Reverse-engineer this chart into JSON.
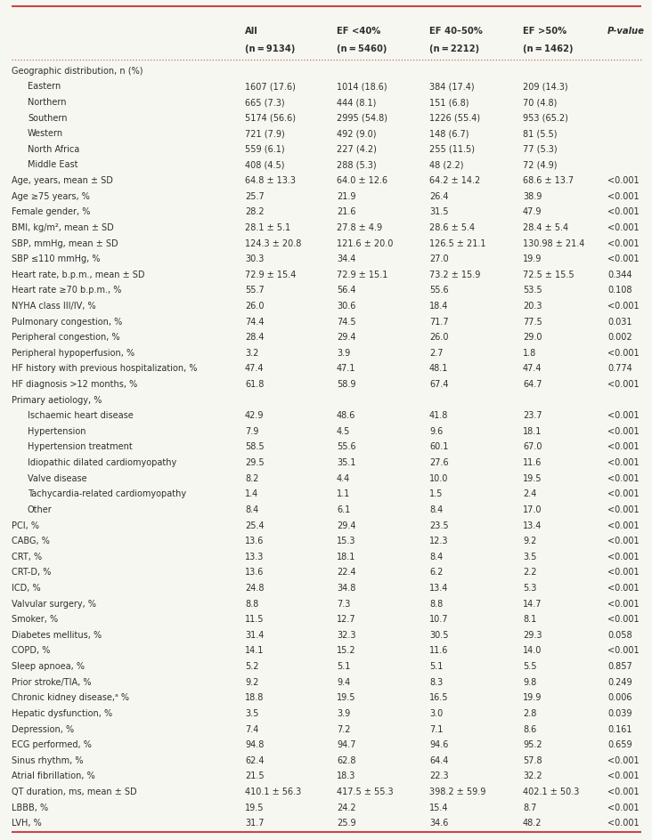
{
  "col_headers_line1": [
    "",
    "All",
    "EF <40%",
    "EF 40–50%",
    "EF >50%",
    "P-value"
  ],
  "col_headers_line2": [
    "",
    "(n = 9134)",
    "(n = 5460)",
    "(n = 2212)",
    "(n = 1462)",
    ""
  ],
  "rows": [
    [
      "Geographic distribution, n (%)",
      "",
      "",
      "",
      "",
      ""
    ],
    [
      "    Eastern",
      "1607 (17.6)",
      "1014 (18.6)",
      "384 (17.4)",
      "209 (14.3)",
      ""
    ],
    [
      "    Northern",
      "665 (7.3)",
      "444 (8.1)",
      "151 (6.8)",
      "70 (4.8)",
      ""
    ],
    [
      "    Southern",
      "5174 (56.6)",
      "2995 (54.8)",
      "1226 (55.4)",
      "953 (65.2)",
      ""
    ],
    [
      "    Western",
      "721 (7.9)",
      "492 (9.0)",
      "148 (6.7)",
      "81 (5.5)",
      ""
    ],
    [
      "    North Africa",
      "559 (6.1)",
      "227 (4.2)",
      "255 (11.5)",
      "77 (5.3)",
      ""
    ],
    [
      "    Middle East",
      "408 (4.5)",
      "288 (5.3)",
      "48 (2.2)",
      "72 (4.9)",
      ""
    ],
    [
      "Age, years, mean ± SD",
      "64.8 ± 13.3",
      "64.0 ± 12.6",
      "64.2 ± 14.2",
      "68.6 ± 13.7",
      "<0.001"
    ],
    [
      "Age ≥75 years, %",
      "25.7",
      "21.9",
      "26.4",
      "38.9",
      "<0.001"
    ],
    [
      "Female gender, %",
      "28.2",
      "21.6",
      "31.5",
      "47.9",
      "<0.001"
    ],
    [
      "BMI, kg/m², mean ± SD",
      "28.1 ± 5.1",
      "27.8 ± 4.9",
      "28.6 ± 5.4",
      "28.4 ± 5.4",
      "<0.001"
    ],
    [
      "SBP, mmHg, mean ± SD",
      "124.3 ± 20.8",
      "121.6 ± 20.0",
      "126.5 ± 21.1",
      "130.98 ± 21.4",
      "<0.001"
    ],
    [
      "SBP ≤110 mmHg, %",
      "30.3",
      "34.4",
      "27.0",
      "19.9",
      "<0.001"
    ],
    [
      "Heart rate, b.p.m., mean ± SD",
      "72.9 ± 15.4",
      "72.9 ± 15.1",
      "73.2 ± 15.9",
      "72.5 ± 15.5",
      "0.344"
    ],
    [
      "Heart rate ≥70 b.p.m., %",
      "55.7",
      "56.4",
      "55.6",
      "53.5",
      "0.108"
    ],
    [
      "NYHA class III/IV, %",
      "26.0",
      "30.6",
      "18.4",
      "20.3",
      "<0.001"
    ],
    [
      "Pulmonary congestion, %",
      "74.4",
      "74.5",
      "71.7",
      "77.5",
      "0.031"
    ],
    [
      "Peripheral congestion, %",
      "28.4",
      "29.4",
      "26.0",
      "29.0",
      "0.002"
    ],
    [
      "Peripheral hypoperfusion, %",
      "3.2",
      "3.9",
      "2.7",
      "1.8",
      "<0.001"
    ],
    [
      "HF history with previous hospitalization, %",
      "47.4",
      "47.1",
      "48.1",
      "47.4",
      "0.774"
    ],
    [
      "HF diagnosis >12 months, %",
      "61.8",
      "58.9",
      "67.4",
      "64.7",
      "<0.001"
    ],
    [
      "Primary aetiology, %",
      "",
      "",
      "",
      "",
      ""
    ],
    [
      "    Ischaemic heart disease",
      "42.9",
      "48.6",
      "41.8",
      "23.7",
      "<0.001"
    ],
    [
      "    Hypertension",
      "7.9",
      "4.5",
      "9.6",
      "18.1",
      "<0.001"
    ],
    [
      "    Hypertension treatment",
      "58.5",
      "55.6",
      "60.1",
      "67.0",
      "<0.001"
    ],
    [
      "    Idiopathic dilated cardiomyopathy",
      "29.5",
      "35.1",
      "27.6",
      "11.6",
      "<0.001"
    ],
    [
      "    Valve disease",
      "8.2",
      "4.4",
      "10.0",
      "19.5",
      "<0.001"
    ],
    [
      "    Tachycardia-related cardiomyopathy",
      "1.4",
      "1.1",
      "1.5",
      "2.4",
      "<0.001"
    ],
    [
      "    Other",
      "8.4",
      "6.1",
      "8.4",
      "17.0",
      "<0.001"
    ],
    [
      "PCI, %",
      "25.4",
      "29.4",
      "23.5",
      "13.4",
      "<0.001"
    ],
    [
      "CABG, %",
      "13.6",
      "15.3",
      "12.3",
      "9.2",
      "<0.001"
    ],
    [
      "CRT, %",
      "13.3",
      "18.1",
      "8.4",
      "3.5",
      "<0.001"
    ],
    [
      "CRT-D, %",
      "13.6",
      "22.4",
      "6.2",
      "2.2",
      "<0.001"
    ],
    [
      "ICD, %",
      "24.8",
      "34.8",
      "13.4",
      "5.3",
      "<0.001"
    ],
    [
      "Valvular surgery, %",
      "8.8",
      "7.3",
      "8.8",
      "14.7",
      "<0.001"
    ],
    [
      "Smoker, %",
      "11.5",
      "12.7",
      "10.7",
      "8.1",
      "<0.001"
    ],
    [
      "Diabetes mellitus, %",
      "31.4",
      "32.3",
      "30.5",
      "29.3",
      "0.058"
    ],
    [
      "COPD, %",
      "14.1",
      "15.2",
      "11.6",
      "14.0",
      "<0.001"
    ],
    [
      "Sleep apnoea, %",
      "5.2",
      "5.1",
      "5.1",
      "5.5",
      "0.857"
    ],
    [
      "Prior stroke/TIA, %",
      "9.2",
      "9.4",
      "8.3",
      "9.8",
      "0.249"
    ],
    [
      "Chronic kidney disease,ᵃ %",
      "18.8",
      "19.5",
      "16.5",
      "19.9",
      "0.006"
    ],
    [
      "Hepatic dysfunction, %",
      "3.5",
      "3.9",
      "3.0",
      "2.8",
      "0.039"
    ],
    [
      "Depression, %",
      "7.4",
      "7.2",
      "7.1",
      "8.6",
      "0.161"
    ],
    [
      "ECG performed, %",
      "94.8",
      "94.7",
      "94.6",
      "95.2",
      "0.659"
    ],
    [
      "Sinus rhythm, %",
      "62.4",
      "62.8",
      "64.4",
      "57.8",
      "<0.001"
    ],
    [
      "Atrial fibrillation, %",
      "21.5",
      "18.3",
      "22.3",
      "32.2",
      "<0.001"
    ],
    [
      "QT duration, ms, mean ± SD",
      "410.1 ± 56.3",
      "417.5 ± 55.3",
      "398.2 ± 59.9",
      "402.1 ± 50.3",
      "<0.001"
    ],
    [
      "LBBB, %",
      "19.5",
      "24.2",
      "15.4",
      "8.7",
      "<0.001"
    ],
    [
      "LVH, %",
      "31.7",
      "25.9",
      "34.6",
      "48.2",
      "<0.001"
    ]
  ],
  "bg_color": "#f7f7f2",
  "text_color": "#2e2e2e",
  "line_color": "#cc4444",
  "dotted_color": "#cc6666",
  "font_size": 7.0,
  "header_font_size": 7.2
}
